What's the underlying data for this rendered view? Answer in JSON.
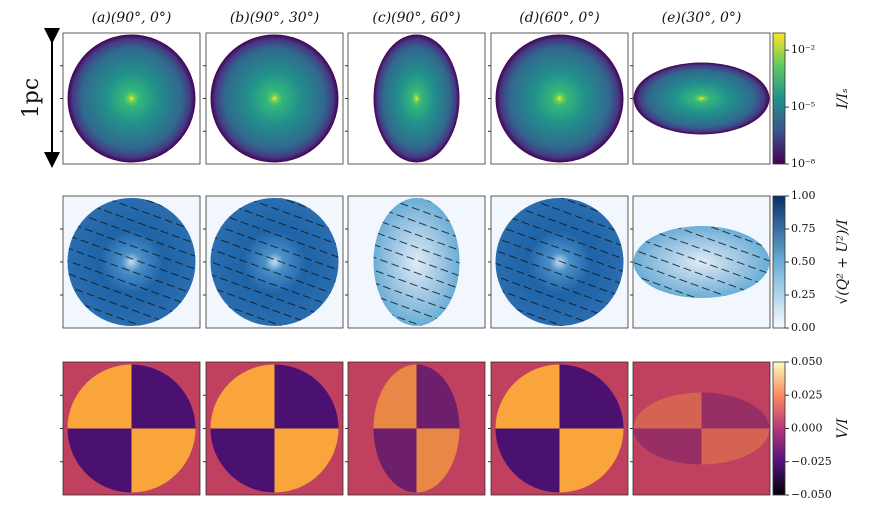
{
  "panel_titles": [
    "(a)(90°, 0°)",
    "(b)(90°, 30°)",
    "(c)(90°, 60°)",
    "(d)(60°, 0°)",
    "(e)(30°, 0°)"
  ],
  "scale_label": "1pc",
  "colorbars": [
    {
      "label": "I/Iₛ",
      "scale": "log",
      "lim": [
        1e-08,
        0.08
      ],
      "ticks": [
        {
          "value": 1e-08,
          "label": "10⁻⁸"
        },
        {
          "value": 1e-05,
          "label": "10⁻⁵"
        },
        {
          "value": 0.01,
          "label": "10⁻²"
        }
      ]
    },
    {
      "label": "√(Q² + U²)/I",
      "scale": "linear",
      "lim": [
        0,
        1
      ],
      "ticks": [
        {
          "value": 0,
          "label": "0.00"
        },
        {
          "value": 0.25,
          "label": "0.25"
        },
        {
          "value": 0.5,
          "label": "0.50"
        },
        {
          "value": 0.75,
          "label": "0.75"
        },
        {
          "value": 1,
          "label": "1.00"
        }
      ]
    },
    {
      "label": "V/I",
      "scale": "linear",
      "lim": [
        -0.05,
        0.05
      ],
      "ticks": [
        {
          "value": -0.05,
          "label": "−0.050"
        },
        {
          "value": -0.025,
          "label": "−0.025"
        },
        {
          "value": 0,
          "label": "0.000"
        },
        {
          "value": 0.025,
          "label": "0.025"
        },
        {
          "value": 0.05,
          "label": "0.050"
        }
      ]
    }
  ]
}
